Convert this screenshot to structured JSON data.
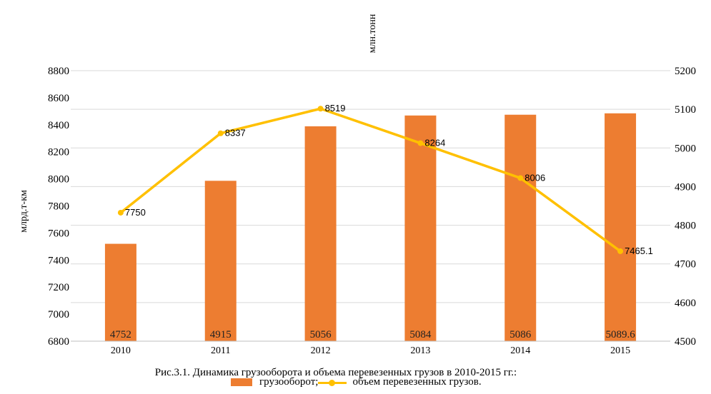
{
  "chart_data": {
    "type": "bar+line",
    "categories": [
      "2010",
      "2011",
      "2012",
      "2013",
      "2014",
      "2015"
    ],
    "series": [
      {
        "name": "грузооборот;",
        "type": "bar",
        "axis": "right",
        "values": [
          4752,
          4915,
          5056,
          5084,
          5086,
          5089.6
        ],
        "labels": [
          "4752",
          "4915",
          "5056",
          "5084",
          "5086",
          "5089.6"
        ],
        "color": "#ED7D31"
      },
      {
        "name": "объем перевезенных грузов.",
        "type": "line",
        "axis": "left",
        "values": [
          7750,
          8337,
          8519,
          8264,
          8006,
          7465.1
        ],
        "labels": [
          "7750",
          "8337",
          "8519",
          "8264",
          "8006",
          "7465.1"
        ],
        "color": "#FFC000"
      }
    ],
    "y_left": {
      "label": "млрд.т-км",
      "range": [
        6800,
        8800
      ],
      "ticks": [
        "8800",
        "8600",
        "8400",
        "8200",
        "8000",
        "7800",
        "7600",
        "7400",
        "7200",
        "7000",
        "6800"
      ]
    },
    "y_right": {
      "label": "млн.тонн",
      "range": [
        4500,
        5200
      ],
      "ticks": [
        "5200",
        "5100",
        "5000",
        "4900",
        "4800",
        "4700",
        "4600",
        "4500"
      ]
    },
    "grid": true,
    "legend": "bottom",
    "caption": "Рис.3.1. Динамика грузооборота и объема перевезенных грузов в 2010-2015 гг.:"
  }
}
